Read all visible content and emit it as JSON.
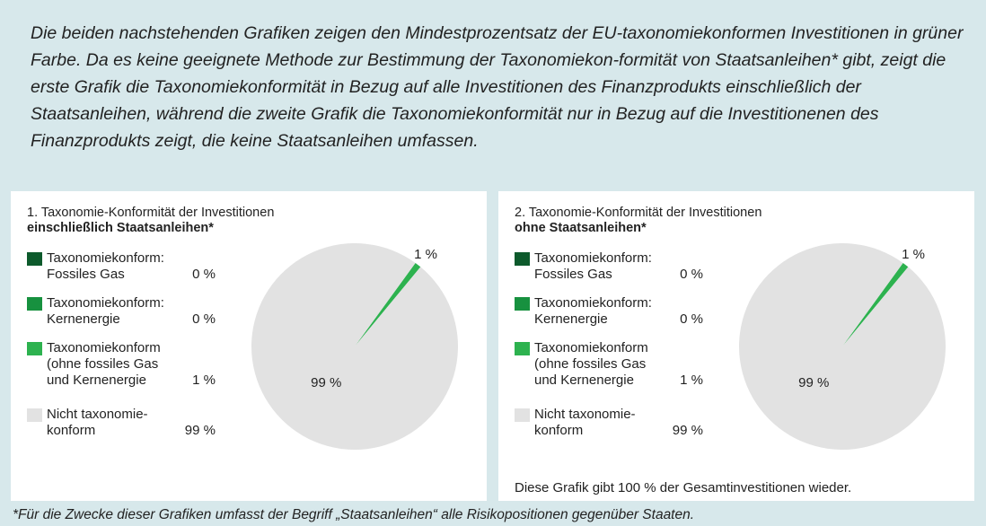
{
  "intro": "Die beiden nachstehenden Grafiken zeigen den Mindestprozentsatz der EU-taxonomiekonformen Investitionen in grüner Farbe. Da es keine geeignete Methode zur Bestimmung der Taxonomiekon-formität von Staatsanleihen* gibt, zeigt die erste Grafik die Taxonomiekonformität in Bezug auf alle Investitionen des Finanzprodukts einschließlich der Staatsanleihen, während die zweite Grafik die Taxonomiekonformität nur in Bezug auf die Investitionenen des Finanzprodukts zeigt, die keine Staatsanleihen umfassen.",
  "chart_data": [
    {
      "type": "pie",
      "title": "1. Taxonomie-Konformität der Investitionen",
      "subtitle": "einschließlich Staatsanleihen*",
      "categories": [
        "Taxonomiekonform:\nFossiles Gas",
        "Taxonomiekonform:\nKernenergie",
        "Taxonomiekonform\n(ohne fossiles Gas\nund Kernenergie",
        "Nicht taxonomie-\nkonform"
      ],
      "values": [
        0,
        0,
        1,
        99
      ],
      "value_labels": [
        "0 %",
        "0 %",
        "1 %",
        "99 %"
      ],
      "colors": [
        "#0d5a2c",
        "#17913f",
        "#2db24f",
        "#e2e2e2"
      ]
    },
    {
      "type": "pie",
      "title": "2. Taxonomie-Konformität der Investitionen",
      "subtitle": "ohne Staatsanleihen*",
      "categories": [
        "Taxonomiekonform:\nFossiles Gas",
        "Taxonomiekonform:\nKernenergie",
        "Taxonomiekonform\n(ohne fossiles Gas\nund Kernenergie",
        "Nicht taxonomie-\nkonform"
      ],
      "values": [
        0,
        0,
        1,
        99
      ],
      "value_labels": [
        "0 %",
        "0 %",
        "1 %",
        "99 %"
      ],
      "colors": [
        "#0d5a2c",
        "#17913f",
        "#2db24f",
        "#e2e2e2"
      ],
      "note": "Diese Grafik gibt 100 % der Gesamtinvestitionen wieder."
    }
  ],
  "footnote": "*Für die Zwecke dieser Grafiken umfasst der Begriff „Staatsanleihen“ alle Risikopositionen gegenüber Staaten."
}
